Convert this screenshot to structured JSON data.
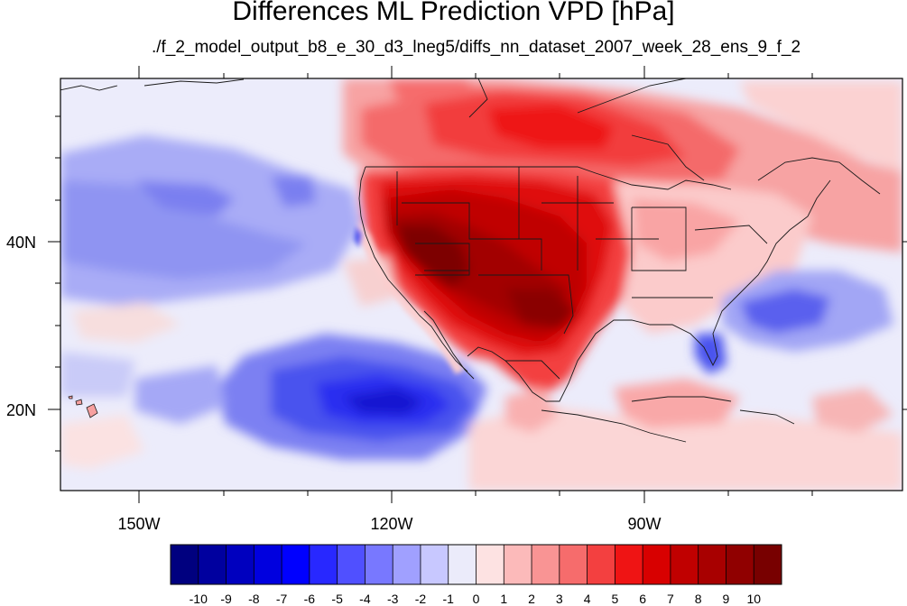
{
  "map": {
    "title": "Differences ML Prediction VPD [hPa]",
    "subtitle": "./f_2_model_output_b8_e_30_d3_lneg5/diffs_nn_dataset_2007_week_28_ens_9_f_2",
    "lon_ticks": [
      "150W",
      "120W",
      "90W"
    ],
    "lat_ticks": [
      "40N",
      "20N"
    ],
    "extent": {
      "lon_min": -159.5,
      "lon_max": -61.5,
      "lat_min": 10,
      "lat_max": 59.5
    },
    "colorbar": {
      "labels": [
        "-10",
        "-9",
        "-8",
        "-7",
        "-6",
        "-5",
        "-4",
        "-3",
        "-2",
        "-1",
        "0",
        "1",
        "2",
        "3",
        "4",
        "5",
        "6",
        "7",
        "8",
        "9",
        "10"
      ],
      "colors": [
        "#00007f",
        "#00009f",
        "#0000bf",
        "#0000df",
        "#0000ff",
        "#2828ff",
        "#5050ff",
        "#7878ff",
        "#a0a0ff",
        "#c8c8ff",
        "#ebebfa",
        "#fde2e2",
        "#fcbaba",
        "#f99494",
        "#f66c6c",
        "#f34040",
        "#ef1414",
        "#d80000",
        "#c00000",
        "#a80000",
        "#900000",
        "#780000"
      ]
    }
  }
}
